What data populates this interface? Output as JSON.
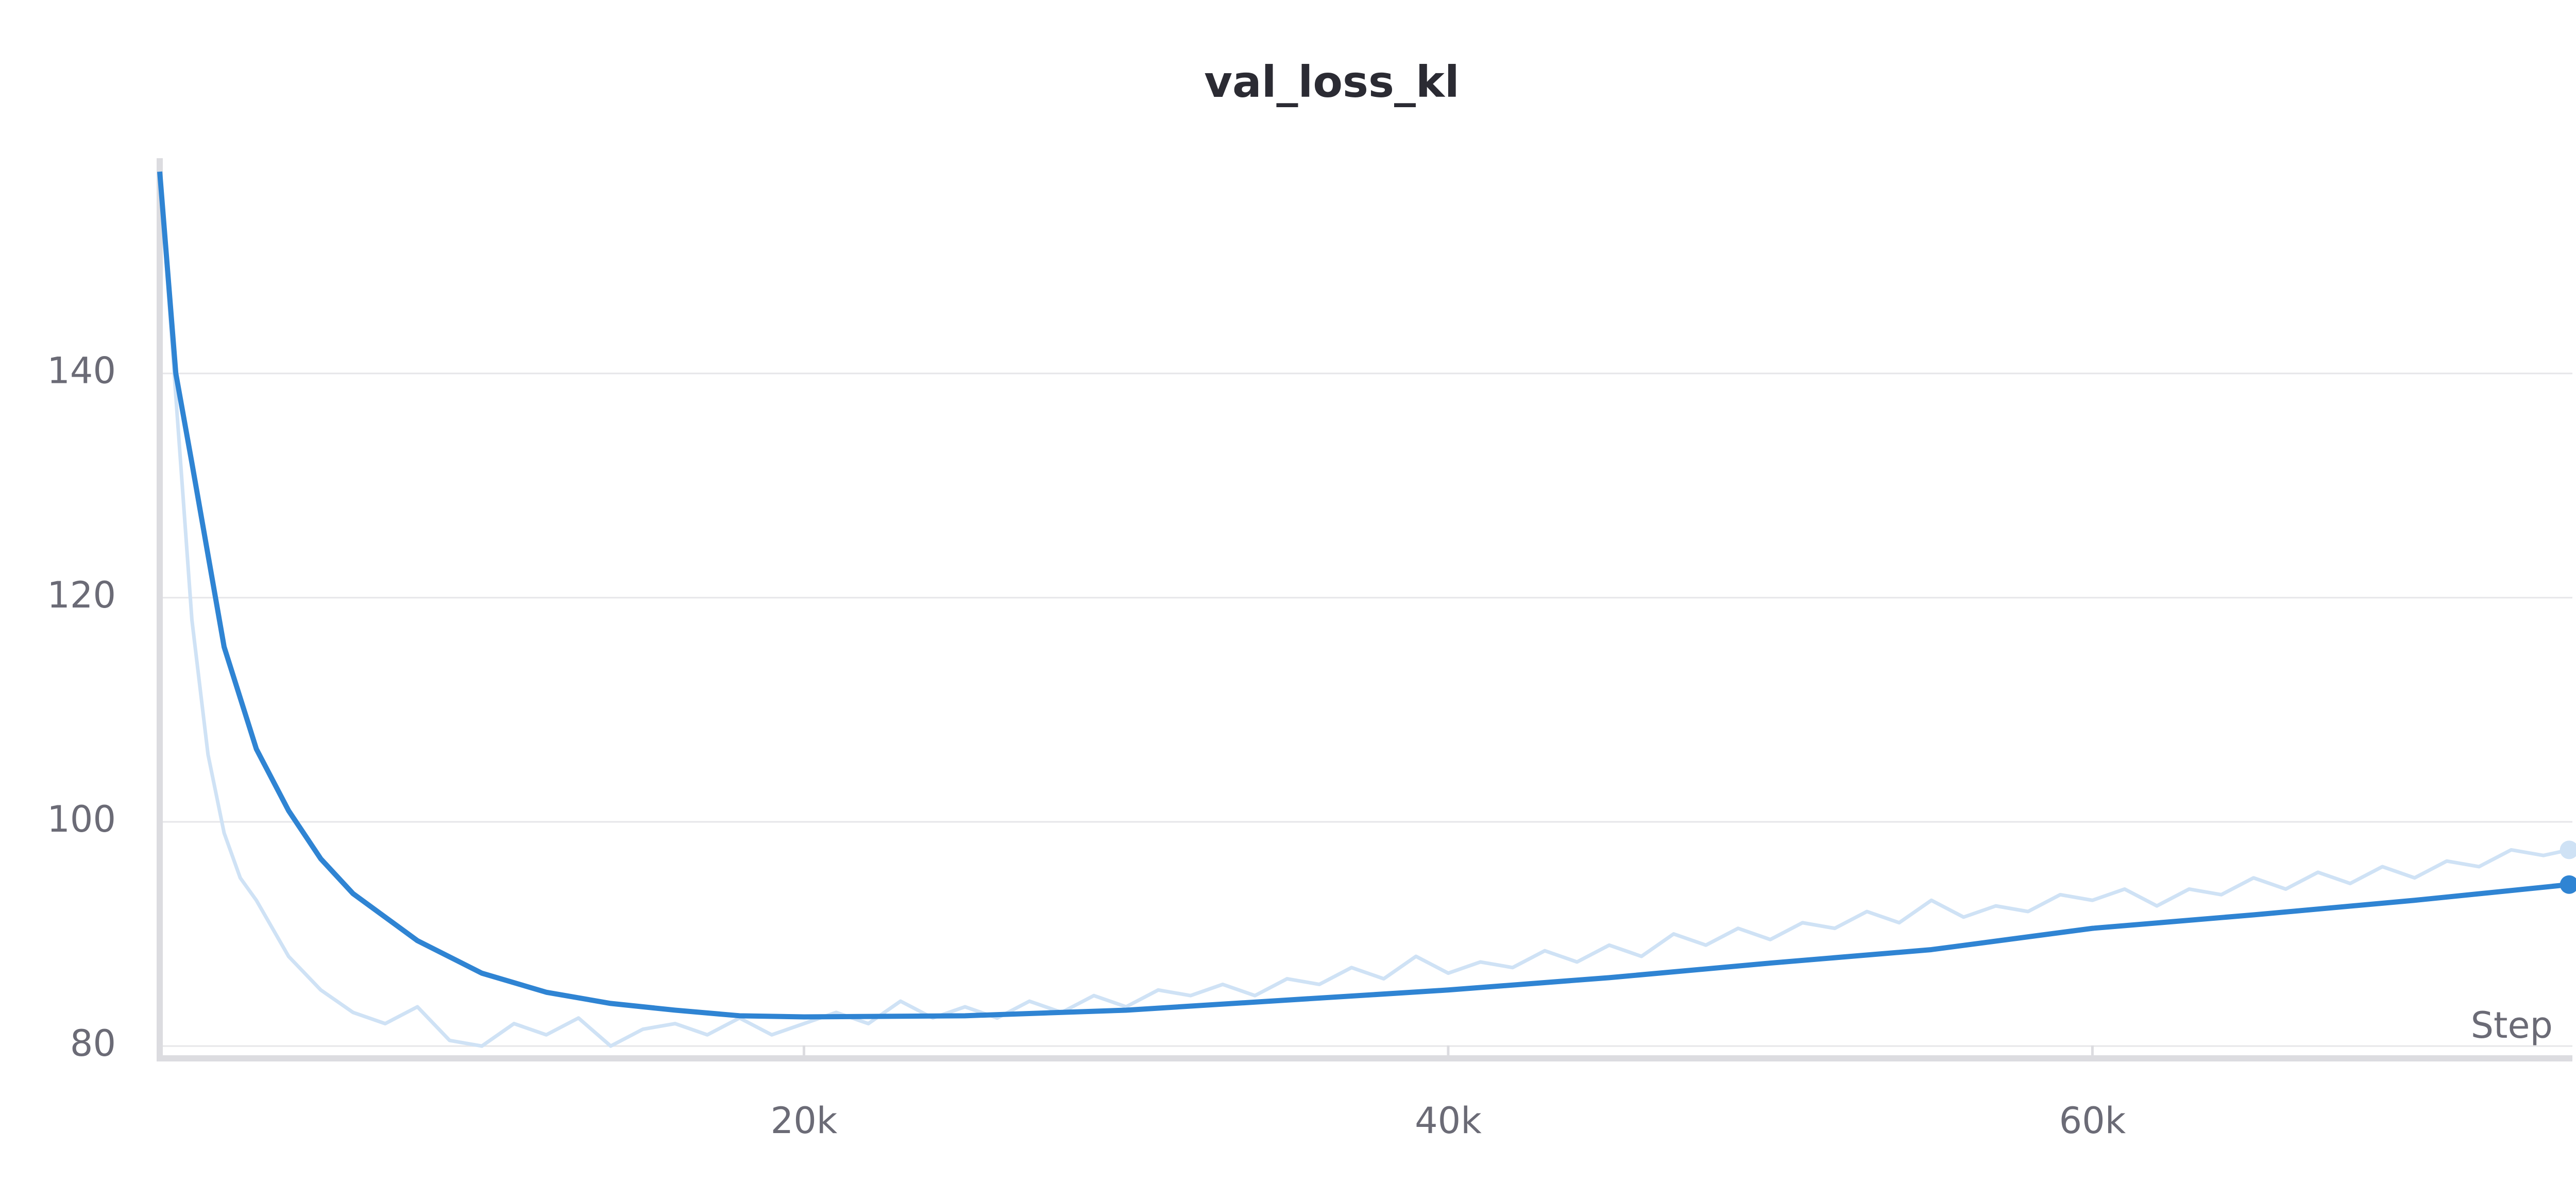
{
  "chart_data": {
    "type": "line",
    "title": "val_loss_kl",
    "xlabel": "Step",
    "xlim": [
      0,
      74900
    ],
    "ylim": [
      78.9,
      159.2
    ],
    "xticks": [
      {
        "value": 20000,
        "label": "20k"
      },
      {
        "value": 40000,
        "label": "40k"
      },
      {
        "value": 60000,
        "label": "60k"
      }
    ],
    "yticks": [
      80,
      100,
      120,
      140
    ],
    "grid": true,
    "series": [
      {
        "color": "#cfe2f5",
        "x": [
          0,
          250,
          500,
          750,
          1000,
          1500,
          2000,
          2500,
          3000,
          4000,
          5000,
          6000,
          7000,
          8000,
          9000,
          10000,
          11000,
          12000,
          13000,
          14000,
          15000,
          16000,
          17000,
          18000,
          19000,
          20000,
          21000,
          22000,
          23000,
          24000,
          25000,
          26000,
          27000,
          28000,
          29000,
          30000,
          31000,
          32000,
          33000,
          34000,
          35000,
          36000,
          37000,
          38000,
          39000,
          40000,
          41000,
          42000,
          43000,
          44000,
          45000,
          46000,
          47000,
          48000,
          49000,
          50000,
          51000,
          52000,
          53000,
          54000,
          55000,
          56000,
          57000,
          58000,
          59000,
          60000,
          61000,
          62000,
          63000,
          64000,
          65000,
          66000,
          67000,
          68000,
          69000,
          70000,
          71000,
          72000,
          73000,
          74000,
          74800
        ],
        "values": [
          158,
          148,
          138,
          128,
          118,
          106,
          99,
          95,
          93,
          88,
          85,
          83,
          82,
          83.5,
          80.5,
          80,
          82,
          81,
          82.5,
          80,
          81.5,
          82,
          81,
          82.5,
          81,
          82,
          83,
          82,
          84,
          82.5,
          83.5,
          82.5,
          84,
          83,
          84.5,
          83.5,
          85,
          84.5,
          85.5,
          84.5,
          86,
          85.5,
          87,
          86,
          88,
          86.5,
          87.5,
          87,
          88.5,
          87.5,
          89,
          88,
          90,
          89,
          90.5,
          89.5,
          91,
          90.5,
          92,
          91,
          93,
          91.5,
          92.5,
          92,
          93.5,
          93,
          94,
          92.5,
          94,
          93.5,
          95,
          94,
          95.5,
          94.5,
          96,
          95,
          96.5,
          96,
          97.5,
          97,
          97.5
        ]
      },
      {
        "color": "#2f84d3",
        "x": [
          0,
          500,
          1000,
          2000,
          3000,
          4000,
          5000,
          6000,
          8000,
          10000,
          12000,
          14000,
          16000,
          18000,
          20000,
          25000,
          30000,
          35000,
          40000,
          45000,
          50000,
          55000,
          60000,
          65000,
          70000,
          74800
        ],
        "values": [
          158,
          140,
          132,
          115.6,
          106.5,
          101,
          96.7,
          93.6,
          89.4,
          86.5,
          84.8,
          83.8,
          83.2,
          82.7,
          82.6,
          82.7,
          83.2,
          84.1,
          85,
          86.1,
          87.4,
          88.6,
          90.5,
          91.7,
          93,
          94.4
        ]
      }
    ]
  }
}
